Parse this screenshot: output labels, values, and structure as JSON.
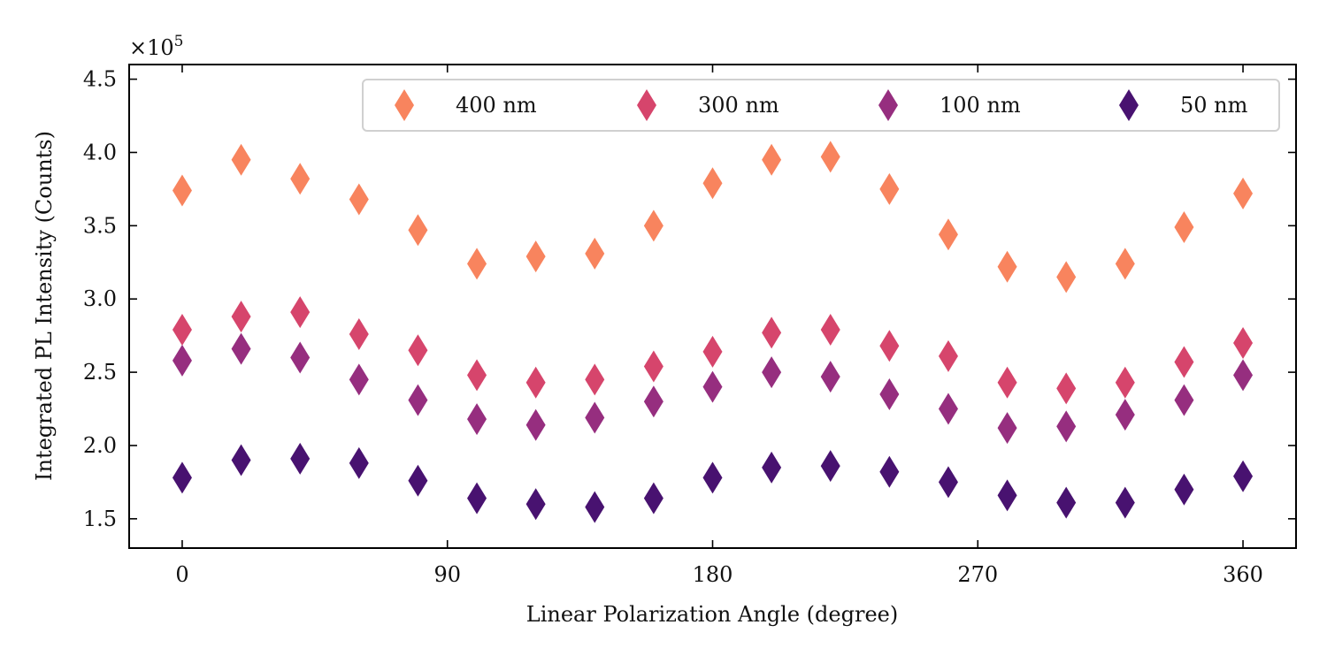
{
  "chart_data": {
    "type": "scatter",
    "title": "",
    "xlabel": "Linear Polarization Angle (degree)",
    "ylabel": "Integrated PL Intensity (Counts)",
    "y_multiplier": "×10",
    "y_multiplier_exp": "5",
    "xlim": [
      -18,
      378
    ],
    "ylim": [
      1.3,
      4.6
    ],
    "xticks": [
      0,
      90,
      180,
      270,
      360
    ],
    "xtick_labels": [
      "0",
      "90",
      "180",
      "270",
      "360"
    ],
    "yticks": [
      1.5,
      2.0,
      2.5,
      3.0,
      3.5,
      4.0,
      4.5
    ],
    "ytick_labels": [
      "1.5",
      "2.0",
      "2.5",
      "3.0",
      "3.5",
      "4.0",
      "4.5"
    ],
    "grid": false,
    "legend_position": "top-right",
    "legend_columns": 4,
    "x": [
      0,
      20,
      40,
      60,
      80,
      100,
      120,
      140,
      160,
      180,
      200,
      220,
      240,
      260,
      280,
      300,
      320,
      340,
      360
    ],
    "series": [
      {
        "name": "400 nm",
        "color": "#f8845e",
        "marker": "thin-diamond",
        "values": [
          3.74,
          3.95,
          3.82,
          3.68,
          3.47,
          3.24,
          3.29,
          3.31,
          3.5,
          3.79,
          3.95,
          3.97,
          3.75,
          3.44,
          3.22,
          3.15,
          3.24,
          3.49,
          3.72
        ]
      },
      {
        "name": "300 nm",
        "color": "#d6456c",
        "marker": "thin-diamond",
        "values": [
          2.79,
          2.88,
          2.91,
          2.76,
          2.65,
          2.48,
          2.43,
          2.45,
          2.54,
          2.64,
          2.77,
          2.79,
          2.68,
          2.61,
          2.43,
          2.39,
          2.43,
          2.57,
          2.7
        ]
      },
      {
        "name": "100 nm",
        "color": "#962e7f",
        "marker": "thin-diamond",
        "values": [
          2.58,
          2.66,
          2.6,
          2.45,
          2.31,
          2.18,
          2.14,
          2.19,
          2.3,
          2.4,
          2.5,
          2.47,
          2.35,
          2.25,
          2.12,
          2.13,
          2.21,
          2.31,
          2.48
        ]
      },
      {
        "name": "50 nm",
        "color": "#481270",
        "marker": "thin-diamond",
        "values": [
          1.78,
          1.9,
          1.91,
          1.88,
          1.76,
          1.64,
          1.6,
          1.58,
          1.64,
          1.78,
          1.85,
          1.86,
          1.82,
          1.75,
          1.66,
          1.61,
          1.61,
          1.7,
          1.79
        ]
      }
    ]
  }
}
